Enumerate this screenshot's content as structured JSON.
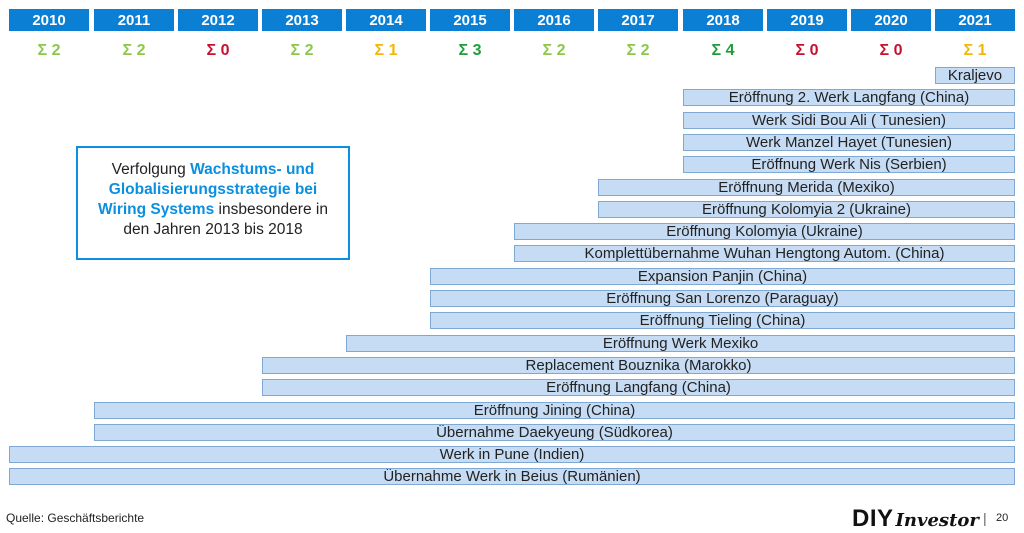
{
  "years": [
    "2010",
    "2011",
    "2012",
    "2013",
    "2014",
    "2015",
    "2016",
    "2017",
    "2018",
    "2019",
    "2020",
    "2021"
  ],
  "sums": [
    {
      "label": "Σ 2",
      "color": "#8cc84b"
    },
    {
      "label": "Σ 2",
      "color": "#8cc84b"
    },
    {
      "label": "Σ 0",
      "color": "#c8102e"
    },
    {
      "label": "Σ 2",
      "color": "#8cc84b"
    },
    {
      "label": "Σ 1",
      "color": "#f2b705"
    },
    {
      "label": "Σ 3",
      "color": "#1e9e3a"
    },
    {
      "label": "Σ 2",
      "color": "#8cc84b"
    },
    {
      "label": "Σ 2",
      "color": "#8cc84b"
    },
    {
      "label": "Σ 4",
      "color": "#1e9e3a"
    },
    {
      "label": "Σ 0",
      "color": "#c8102e"
    },
    {
      "label": "Σ 0",
      "color": "#c8102e"
    },
    {
      "label": "Σ 1",
      "color": "#f2b705"
    }
  ],
  "bars": [
    {
      "label": "Kraljevo",
      "start_year": "2021"
    },
    {
      "label": "Eröffnung 2. Werk Langfang (China)",
      "start_year": "2018"
    },
    {
      "label": "Werk Sidi Bou Ali ( Tunesien)",
      "start_year": "2018"
    },
    {
      "label": "Werk Manzel Hayet (Tunesien)",
      "start_year": "2018"
    },
    {
      "label": "Eröffnung Werk Nis (Serbien)",
      "start_year": "2018"
    },
    {
      "label": "Eröffnung Merida (Mexiko)",
      "start_year": "2017"
    },
    {
      "label": "Eröffnung Kolomyia 2 (Ukraine)",
      "start_year": "2017"
    },
    {
      "label": "Eröffnung Kolomyia (Ukraine)",
      "start_year": "2016"
    },
    {
      "label": "Komplettübernahme Wuhan Hengtong Autom. (China)",
      "start_year": "2016"
    },
    {
      "label": "Expansion Panjin (China)",
      "start_year": "2015"
    },
    {
      "label": "Eröffnung San Lorenzo (Paraguay)",
      "start_year": "2015"
    },
    {
      "label": "Eröffnung Tieling (China)",
      "start_year": "2015"
    },
    {
      "label": "Eröffnung Werk Mexiko",
      "start_year": "2014"
    },
    {
      "label": "Replacement Bouznika (Marokko)",
      "start_year": "2013"
    },
    {
      "label": "Eröffnung Langfang (China)",
      "start_year": "2013"
    },
    {
      "label": "Eröffnung Jining (China)",
      "start_year": "2011"
    },
    {
      "label": "Übernahme Daekyeung (Südkorea)",
      "start_year": "2011"
    },
    {
      "label": "Werk in Pune (Indien)",
      "start_year": "2010"
    },
    {
      "label": "Übernahme Werk in Beius (Rumänien)",
      "start_year": "2010"
    }
  ],
  "callout": {
    "text_before": "Verfolgung ",
    "highlight": "Wachstums- und Globalisierungsstrategie bei Wiring Systems",
    "text_after": " insbesondere in den Jahren 2013 bis 2018",
    "highlight_color": "#0b8fe0"
  },
  "footer": {
    "source": "Quelle: Geschäftsberichte",
    "logo_diy": "DIY",
    "logo_investor": "Investor",
    "separator": "|",
    "page_number": "20"
  },
  "colors": {
    "year_header": "#0b7fd4",
    "bar_fill": "#c6dcf4",
    "bar_border": "#7fa8d2"
  }
}
